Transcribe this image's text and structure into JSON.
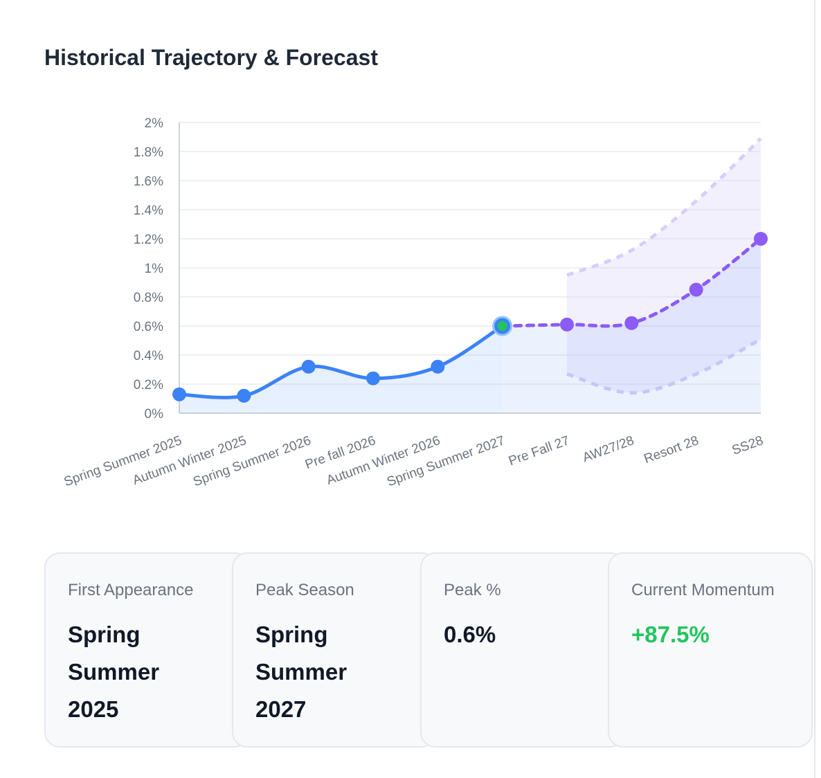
{
  "chart_data": {
    "type": "line",
    "title": "Historical Trajectory & Forecast",
    "categories": [
      "Spring Summer 2025",
      "Autumn Winter 2025",
      "Spring Summer 2026",
      "Pre fall 2026",
      "Autumn Winter 2026",
      "Spring Summer 2027",
      "Pre Fall 27",
      "AW27/28",
      "Resort 28",
      "SS28"
    ],
    "series": [
      {
        "color": "#3b82f6",
        "values": [
          0.13,
          0.12,
          0.32,
          0.24,
          0.32,
          0.6,
          null,
          null,
          null,
          null
        ]
      },
      {
        "color": "#8b5cf6",
        "dashed": true,
        "values": [
          null,
          null,
          null,
          null,
          null,
          0.6,
          0.61,
          0.62,
          0.85,
          1.2
        ]
      }
    ],
    "band": {
      "color": "#d8cdfb",
      "upper": [
        null,
        null,
        null,
        null,
        null,
        null,
        0.95,
        1.12,
        1.46,
        1.89
      ],
      "lower": [
        null,
        null,
        null,
        null,
        null,
        null,
        0.27,
        0.14,
        0.27,
        0.51
      ]
    },
    "current_color": "#22c55e",
    "ylim": [
      0,
      2
    ],
    "yticks": [
      {
        "value": 0,
        "label": "0%"
      },
      {
        "value": 0.2,
        "label": "0.2%"
      },
      {
        "value": 0.4,
        "label": "0.4%"
      },
      {
        "value": 0.6,
        "label": "0.6%"
      },
      {
        "value": 0.8,
        "label": "0.8%"
      },
      {
        "value": 1,
        "label": "1%"
      },
      {
        "value": 1.2,
        "label": "1.2%"
      },
      {
        "value": 1.4,
        "label": "1.4%"
      },
      {
        "value": 1.6,
        "label": "1.6%"
      },
      {
        "value": 1.8,
        "label": "1.8%"
      },
      {
        "value": 2,
        "label": "2%"
      }
    ],
    "grid": true
  },
  "cards": [
    {
      "label": "First Appearance",
      "value": "Spring Summer 2025"
    },
    {
      "label": "Peak Season",
      "value": "Spring Summer 2027"
    },
    {
      "label": "Peak %",
      "value": "0.6%"
    },
    {
      "label": "Current Momentum",
      "value": "+87.5%",
      "positive": true
    }
  ]
}
